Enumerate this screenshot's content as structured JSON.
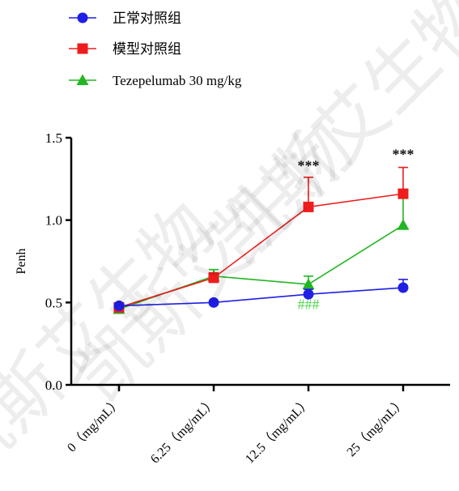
{
  "chart_data": {
    "type": "line",
    "ylabel": "Penh",
    "xlabel": "",
    "ylim": [
      0,
      1.5
    ],
    "yticks": [
      "0.0",
      "0.5",
      "1.0",
      "1.5"
    ],
    "categories": [
      "0（mg/mL）",
      "6.25（mg/mL）",
      "12.5（mg/mL）",
      "25（mg/mL）"
    ],
    "legend_position": "top-left",
    "series": [
      {
        "name": "正常对照组",
        "color": "#1f1fe6",
        "marker": "circle",
        "values": [
          0.48,
          0.5,
          0.55,
          0.59
        ],
        "errors": [
          0.01,
          0.01,
          0.03,
          0.05
        ]
      },
      {
        "name": "模型对照组",
        "color": "#ee1c1c",
        "marker": "square",
        "values": [
          0.47,
          0.65,
          1.08,
          1.16
        ],
        "errors": [
          0.02,
          0.03,
          0.18,
          0.16
        ]
      },
      {
        "name": "Tezepelumab 30 mg/kg",
        "color": "#22b622",
        "marker": "triangle",
        "values": [
          0.46,
          0.66,
          0.61,
          0.97
        ],
        "errors": [
          0.02,
          0.04,
          0.05,
          0.17
        ]
      }
    ],
    "annotations": [
      {
        "text": "***",
        "category_index": 2,
        "y": 1.3,
        "color": "#111111"
      },
      {
        "text": "***",
        "category_index": 3,
        "y": 1.37,
        "color": "#111111"
      },
      {
        "text": "###",
        "category_index": 2,
        "y": 0.46,
        "color": "#4cd64c"
      }
    ]
  },
  "watermark": {
    "text": "凯斯艾生物"
  }
}
